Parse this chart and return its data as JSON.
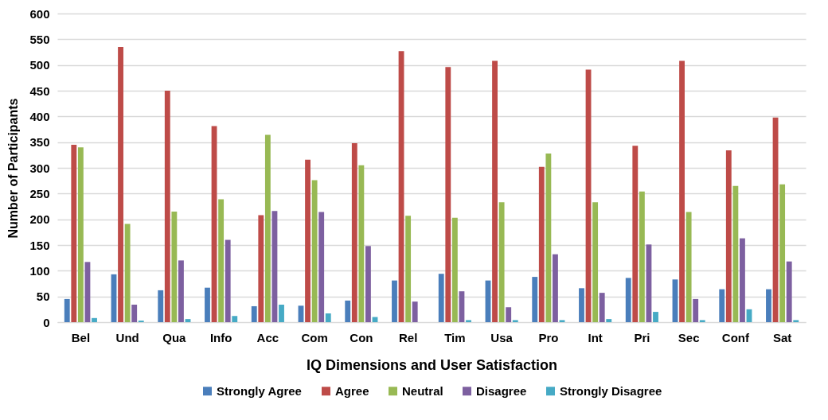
{
  "chart_data": {
    "type": "bar",
    "xlabel": "IQ Dimensions and User Satisfaction",
    "ylabel": "Number of Participants",
    "categories": [
      "Bel",
      "Und",
      "Qua",
      "Info",
      "Acc",
      "Com",
      "Con",
      "Rel",
      "Tim",
      "Usa",
      "Pro",
      "Int",
      "Pri",
      "Sec",
      "Conf",
      "Sat"
    ],
    "series": [
      {
        "name": "Strongly Agree",
        "color": "#4a7ebb",
        "values": [
          45,
          93,
          62,
          67,
          31,
          32,
          42,
          81,
          94,
          81,
          88,
          66,
          86,
          83,
          64,
          64
        ]
      },
      {
        "name": "Agree",
        "color": "#be4b48",
        "values": [
          345,
          535,
          450,
          381,
          208,
          316,
          348,
          527,
          496,
          508,
          302,
          491,
          343,
          508,
          334,
          398
        ]
      },
      {
        "name": "Neutral",
        "color": "#98b954",
        "values": [
          340,
          191,
          215,
          239,
          364,
          276,
          305,
          207,
          203,
          233,
          328,
          233,
          254,
          214,
          265,
          268
        ]
      },
      {
        "name": "Disagree",
        "color": "#7d60a0",
        "values": [
          117,
          34,
          120,
          160,
          216,
          214,
          148,
          40,
          60,
          29,
          132,
          57,
          151,
          45,
          163,
          118
        ]
      },
      {
        "name": "Strongly Disagree",
        "color": "#46aac5",
        "values": [
          8,
          3,
          6,
          12,
          34,
          17,
          10,
          null,
          4,
          4,
          4,
          6,
          20,
          4,
          25,
          4
        ]
      }
    ],
    "ylim": [
      0,
      600
    ],
    "yticks": [
      0,
      50,
      100,
      150,
      200,
      250,
      300,
      350,
      400,
      450,
      500,
      550,
      600
    ],
    "grid": "y",
    "legend": "bottom"
  }
}
